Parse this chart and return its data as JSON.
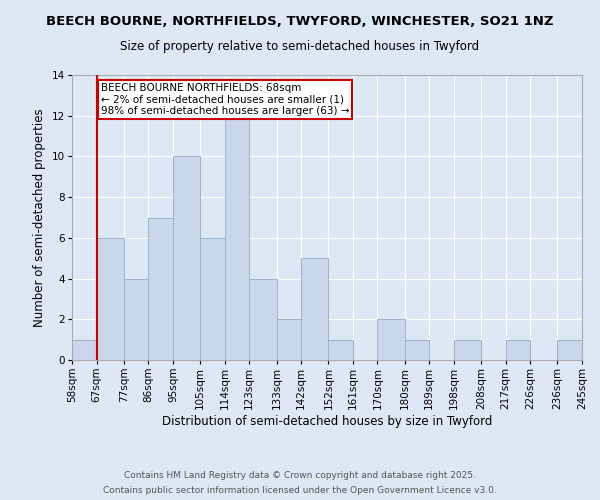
{
  "title_line1": "BEECH BOURNE, NORTHFIELDS, TWYFORD, WINCHESTER, SO21 1NZ",
  "title_line2": "Size of property relative to semi-detached houses in Twyford",
  "xlabel": "Distribution of semi-detached houses by size in Twyford",
  "ylabel": "Number of semi-detached properties",
  "bin_edges": [
    58,
    67,
    77,
    86,
    95,
    105,
    114,
    123,
    133,
    142,
    152,
    161,
    170,
    180,
    189,
    198,
    208,
    217,
    226,
    236,
    245
  ],
  "bin_labels": [
    "58sqm",
    "67sqm",
    "77sqm",
    "86sqm",
    "95sqm",
    "105sqm",
    "114sqm",
    "123sqm",
    "133sqm",
    "142sqm",
    "152sqm",
    "161sqm",
    "170sqm",
    "180sqm",
    "189sqm",
    "198sqm",
    "208sqm",
    "217sqm",
    "226sqm",
    "236sqm",
    "245sqm"
  ],
  "counts": [
    1,
    6,
    4,
    7,
    10,
    6,
    12,
    4,
    2,
    5,
    1,
    0,
    2,
    1,
    0,
    1,
    0,
    1,
    0,
    1
  ],
  "bar_color": "#c8d8ea",
  "bar_edge_color": "#9ab4cc",
  "background_color": "#dce8f4",
  "red_line_x": 67,
  "annotation_title": "BEECH BOURNE NORTHFIELDS: 68sqm",
  "annotation_line1": "← 2% of semi-detached houses are smaller (1)",
  "annotation_line2": "98% of semi-detached houses are larger (63) →",
  "annotation_box_color": "#ffffff",
  "annotation_box_edge": "#cc0000",
  "red_line_color": "#cc0000",
  "ylim": [
    0,
    14
  ],
  "yticks": [
    0,
    2,
    4,
    6,
    8,
    10,
    12,
    14
  ],
  "footer_line1": "Contains HM Land Registry data © Crown copyright and database right 2025.",
  "footer_line2": "Contains public sector information licensed under the Open Government Licence v3.0.",
  "title_fontsize": 9.5,
  "subtitle_fontsize": 8.5,
  "axis_label_fontsize": 8.5,
  "tick_fontsize": 7.5,
  "annotation_fontsize": 7.5,
  "footer_fontsize": 6.5
}
